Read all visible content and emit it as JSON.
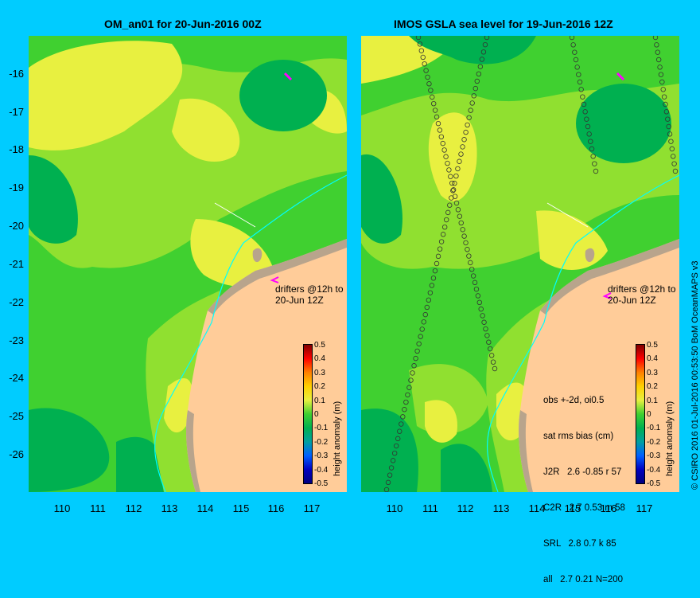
{
  "left_panel": {
    "title": "OM_an01 for 20-Jun-2016 00Z",
    "drifters_line1": "drifters @12h to",
    "drifters_line2": "20-Jun 12Z"
  },
  "right_panel": {
    "title": "IMOS GSLA sea level  for 19-Jun-2016 12Z",
    "drifters_line1": "drifters @12h to",
    "drifters_line2": "20-Jun 12Z",
    "stats_lines": [
      "obs +-2d, oi0.5",
      "sat rms bias (cm)",
      "J2R   2.6 -0.85 r 57",
      "C2R   2.7 0.53 m 58",
      "SRL   2.8 0.7 k 85",
      "all   2.7 0.21 N=200"
    ]
  },
  "axes": {
    "y_ticks": [
      "-16",
      "-17",
      "-18",
      "-19",
      "-20",
      "-21",
      "-22",
      "-23",
      "-24",
      "-25",
      "-26"
    ],
    "x_ticks": [
      "110",
      "111",
      "112",
      "113",
      "114",
      "115",
      "116",
      "117"
    ]
  },
  "colorbar": {
    "title": "height anomaly (m)",
    "labels": [
      "0.5",
      "0.4",
      "0.3",
      "0.2",
      "0.1",
      "0",
      "-0.1",
      "-0.2",
      "-0.3",
      "-0.4",
      "-0.5"
    ]
  },
  "credit": "© CSIRO 2016   01-Jul-2016 00:53:50 BoM OceanMAPS v3",
  "colors": {
    "background": "#00ccff",
    "land": "#ffcc99",
    "coast": "#b8a48c",
    "field_dark_green": "#00b050",
    "field_green": "#40d030",
    "field_light_green": "#90e030",
    "field_yellow": "#e8f040",
    "drifter": "#ff00ff"
  }
}
